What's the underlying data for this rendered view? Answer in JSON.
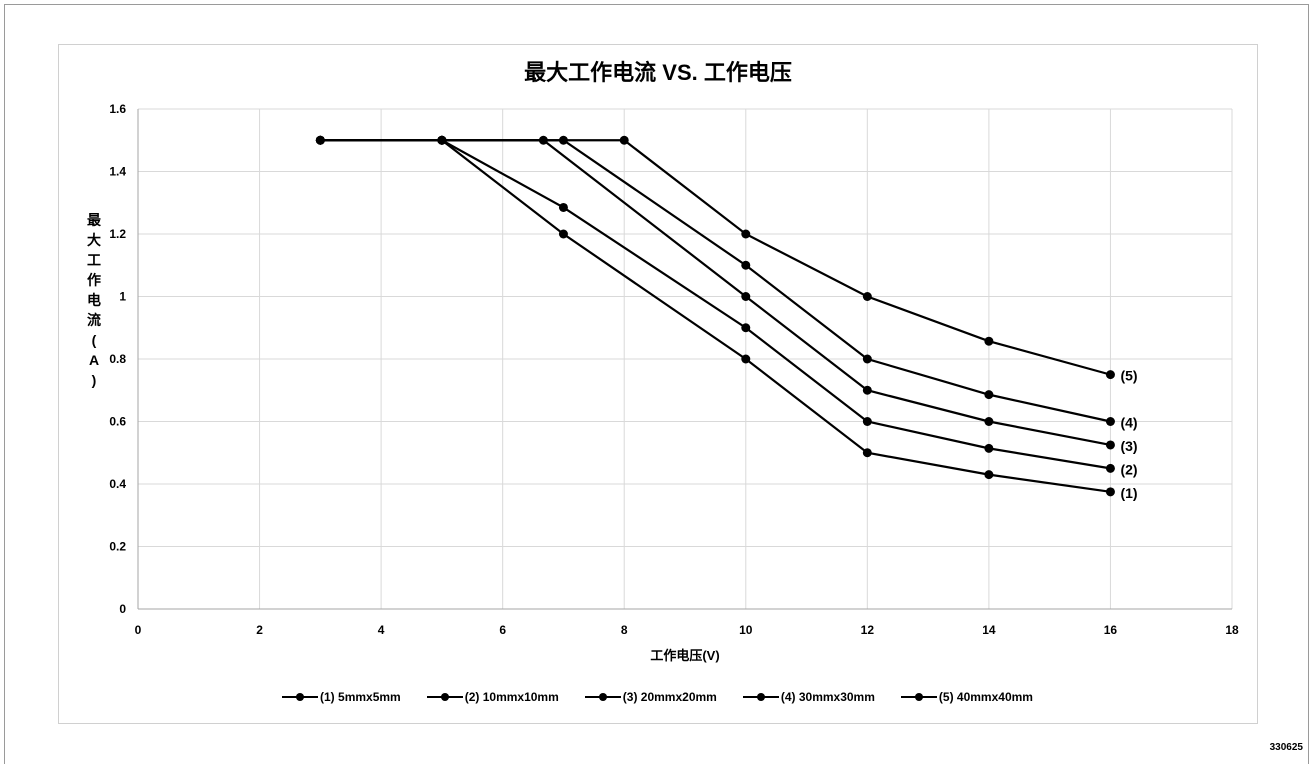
{
  "document_number": "330625",
  "chart_data": {
    "type": "line",
    "title": "最大工作电流 VS. 工作电压",
    "xlabel": "工作电压(V)",
    "ylabel": "最大工作电流(A)",
    "xlim": [
      0,
      18
    ],
    "ylim": [
      0,
      1.6
    ],
    "x_ticks": [
      "0",
      "2",
      "4",
      "6",
      "8",
      "10",
      "12",
      "14",
      "16",
      "18"
    ],
    "y_ticks": [
      "0",
      "0.2",
      "0.4",
      "0.6",
      "0.8",
      "1",
      "1.2",
      "1.4",
      "1.6"
    ],
    "grid": true,
    "legend_position": "bottom",
    "line_color": "#000000",
    "series": [
      {
        "name": "(1) 5mmx5mm",
        "end_label": "(1)",
        "x": [
          3,
          5,
          7,
          10,
          12,
          14,
          16
        ],
        "y": [
          1.5,
          1.5,
          1.2,
          0.8,
          0.5,
          0.43,
          0.375
        ]
      },
      {
        "name": "(2) 10mmx10mm",
        "end_label": "(2)",
        "x": [
          3,
          5,
          7,
          10,
          12,
          14,
          16
        ],
        "y": [
          1.5,
          1.5,
          1.285,
          0.9,
          0.6,
          0.514,
          0.45
        ]
      },
      {
        "name": "(3) 20mmx20mm",
        "end_label": "(3)",
        "x": [
          3,
          5,
          6.67,
          10,
          12,
          14,
          16
        ],
        "y": [
          1.5,
          1.5,
          1.5,
          1.0,
          0.7,
          0.6,
          0.525
        ]
      },
      {
        "name": "(4) 30mmx30mm",
        "end_label": "(4)",
        "x": [
          3,
          5,
          7,
          10,
          12,
          14,
          16
        ],
        "y": [
          1.5,
          1.5,
          1.5,
          1.1,
          0.8,
          0.686,
          0.6
        ]
      },
      {
        "name": "(5) 40mmx40mm",
        "end_label": "(5)",
        "x": [
          3,
          5,
          8,
          10,
          12,
          14,
          16
        ],
        "y": [
          1.5,
          1.5,
          1.5,
          1.2,
          1.0,
          0.857,
          0.75
        ]
      }
    ]
  }
}
